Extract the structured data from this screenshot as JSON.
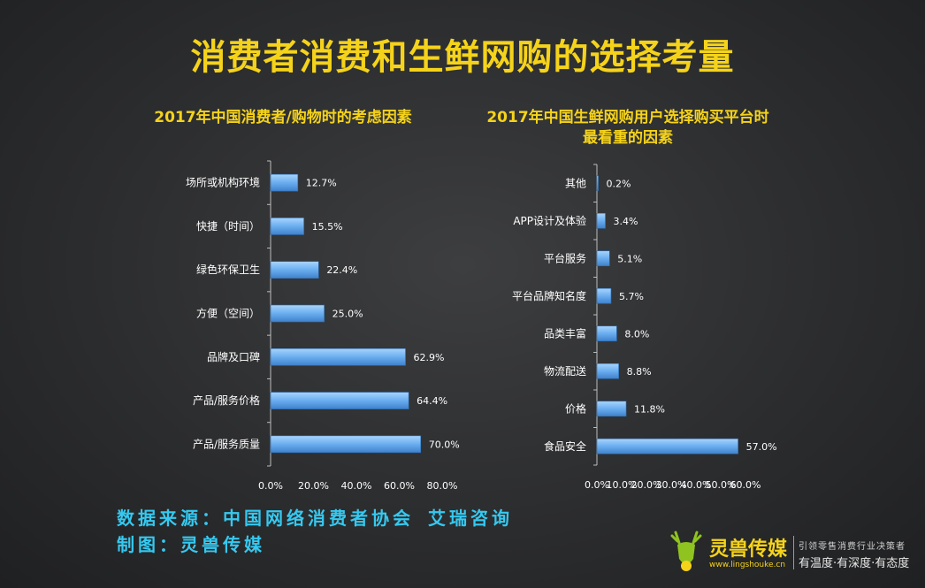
{
  "title": "消费者消费和生鲜网购的选择考量",
  "chart_data": [
    {
      "type": "bar",
      "orientation": "horizontal",
      "title": "2017年中国消费者/购物时的考虑因素",
      "categories": [
        "场所或机构环境",
        "快捷（时间）",
        "绿色环保卫生",
        "方便（空间）",
        "品牌及口碑",
        "产品/服务价格",
        "产品/服务质量"
      ],
      "values": [
        12.7,
        15.5,
        22.4,
        25.0,
        62.9,
        64.4,
        70.0
      ],
      "value_labels": [
        "12.7%",
        "15.5%",
        "22.4%",
        "25.0%",
        "62.9%",
        "64.4%",
        "70.0%"
      ],
      "xlim": [
        0,
        80
      ],
      "x_ticks": [
        "0.0%",
        "20.0%",
        "40.0%",
        "60.0%",
        "80.0%"
      ],
      "bar_color": "#6fb2f2",
      "grid": false
    },
    {
      "type": "bar",
      "orientation": "horizontal",
      "title": "2017年中国生鲜网购用户选择购买平台时最看重的因素",
      "categories": [
        "其他",
        "APP设计及体验",
        "平台服务",
        "平台品牌知名度",
        "品类丰富",
        "物流配送",
        "价格",
        "食品安全"
      ],
      "values": [
        0.2,
        3.4,
        5.1,
        5.7,
        8.0,
        8.8,
        11.8,
        57.0
      ],
      "value_labels": [
        "0.2%",
        "3.4%",
        "5.1%",
        "5.7%",
        "8.0%",
        "8.8%",
        "11.8%",
        "57.0%"
      ],
      "xlim": [
        0,
        60
      ],
      "x_ticks": [
        "0.0%",
        "10.0%",
        "20.0%",
        "30.0%",
        "40.0%",
        "50.0%",
        "60.0%"
      ],
      "bar_color": "#6fb2f2",
      "grid": false
    }
  ],
  "footer": {
    "source": "数据来源：中国网络消费者协会 艾瑞咨询",
    "maker": "制图：灵兽传媒"
  },
  "brand": {
    "name": "灵兽传媒",
    "url": "www.lingshouke.cn",
    "slogan_top": "引领零售消费行业决策者",
    "slogan_bottom": "有温度·有深度·有态度",
    "logo_icon": "deer-head-icon"
  }
}
